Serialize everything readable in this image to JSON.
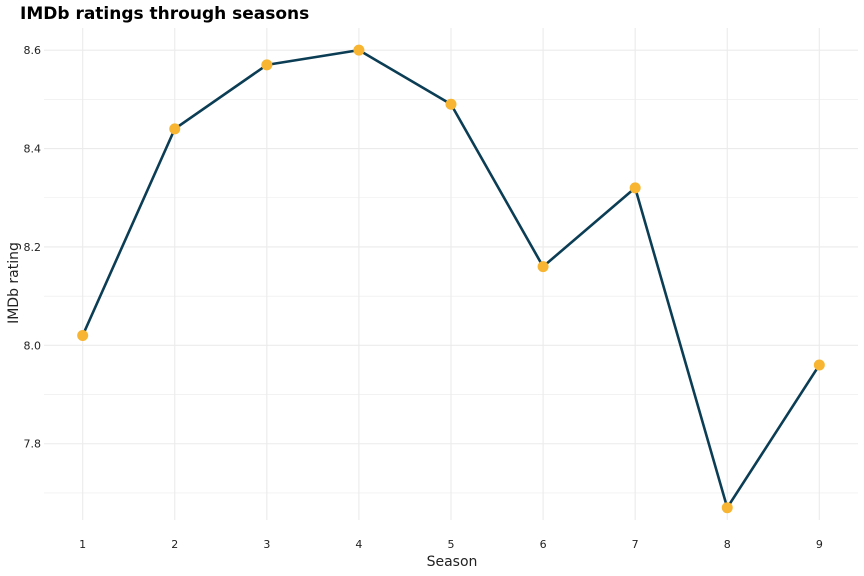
{
  "chart_data": {
    "type": "line",
    "title": "IMDb ratings through seasons",
    "xlabel": "Season",
    "ylabel": "IMDb rating",
    "x": [
      1,
      2,
      3,
      4,
      5,
      6,
      7,
      8,
      9
    ],
    "x_tick_labels": [
      "1",
      "2",
      "3",
      "4",
      "5",
      "6",
      "7",
      "8",
      "9"
    ],
    "y_ticks": [
      7.8,
      8.0,
      8.2,
      8.4,
      8.6
    ],
    "y_tick_labels": [
      "7.8",
      "8.0",
      "8.2",
      "8.4",
      "8.6"
    ],
    "series": [
      {
        "values": [
          8.02,
          8.44,
          8.57,
          8.6,
          8.49,
          8.16,
          8.32,
          7.67,
          7.96
        ]
      }
    ],
    "xlim": [
      0.58,
      9.42
    ],
    "ylim": [
      7.645,
      8.645
    ],
    "grid": true,
    "legend": "none",
    "colors": {
      "line": "#0b3d55",
      "point": "#f7b531",
      "grid": "#ebebeb"
    }
  }
}
